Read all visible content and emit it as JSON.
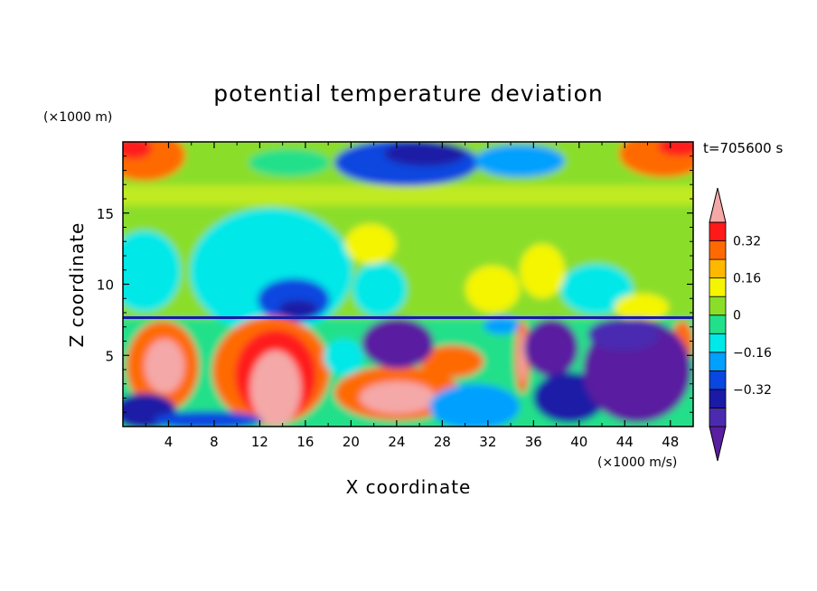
{
  "chart_data": {
    "type": "heatmap",
    "title": "potential temperature deviation",
    "xlabel": "X coordinate",
    "ylabel": "Z coordinate",
    "x_unit_label": "(×1000 m/s)",
    "y_unit_label": "(×1000 m)",
    "time_label": "t=705600 s",
    "xlim": [
      0,
      50
    ],
    "ylim": [
      0,
      20
    ],
    "x_ticks": [
      4,
      8,
      12,
      16,
      20,
      24,
      28,
      32,
      36,
      40,
      44,
      48
    ],
    "x_tick_labels": [
      "4",
      "8",
      "12",
      "16",
      "20",
      "24",
      "28",
      "32",
      "36",
      "40",
      "44",
      "48"
    ],
    "y_ticks": [
      5,
      10,
      15
    ],
    "y_tick_labels": [
      "5",
      "10",
      "15"
    ],
    "colorbar": {
      "levels": [
        -0.48,
        -0.4,
        -0.32,
        -0.24,
        -0.16,
        -0.08,
        0,
        0.08,
        0.16,
        0.24,
        0.32,
        0.4
      ],
      "tick_values": [
        -0.32,
        -0.16,
        0,
        0.16,
        0.32
      ],
      "tick_labels": [
        "−0.32",
        "−0.16",
        "0",
        "0.16",
        "0.32"
      ],
      "colors": [
        "#5a1ea0",
        "#4a2bb0",
        "#1a1aa6",
        "#0a46e0",
        "#00a0ff",
        "#00e8e8",
        "#22e08a",
        "#8ade2a",
        "#f5f500",
        "#ffb800",
        "#ff6a00",
        "#ff1a1a",
        "#f4a8a8"
      ],
      "extend": "both"
    }
  }
}
